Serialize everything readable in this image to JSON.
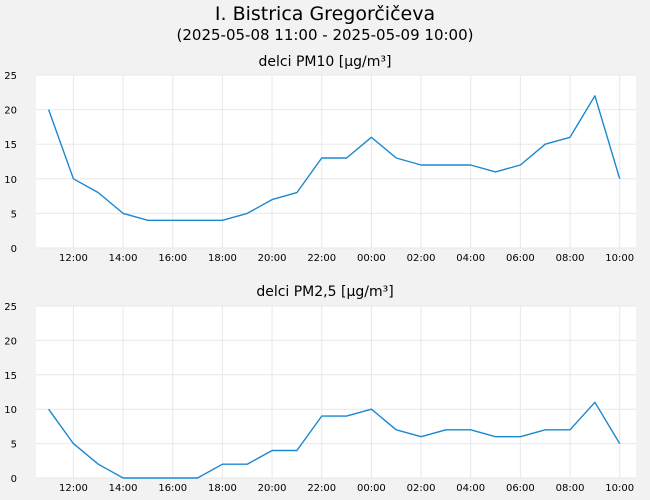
{
  "header": {
    "title": "I. Bistrica Gregorčičeva",
    "subtitle": "(2025-05-08 11:00 - 2025-05-09 10:00)"
  },
  "colors": {
    "line": "#1a88d0",
    "plot_bg": "#ffffff",
    "grid": "#e8e8e8",
    "page_bg": "#f2f2f2"
  },
  "chart_data": [
    {
      "type": "line",
      "title": "delci PM10 [µg/m³]",
      "x": [
        "11:00",
        "12:00",
        "13:00",
        "14:00",
        "15:00",
        "16:00",
        "17:00",
        "18:00",
        "19:00",
        "20:00",
        "21:00",
        "22:00",
        "23:00",
        "00:00",
        "01:00",
        "02:00",
        "03:00",
        "04:00",
        "05:00",
        "06:00",
        "07:00",
        "08:00",
        "09:00",
        "10:00"
      ],
      "xtick_labels": [
        "12:00",
        "14:00",
        "16:00",
        "18:00",
        "20:00",
        "22:00",
        "00:00",
        "02:00",
        "04:00",
        "06:00",
        "08:00",
        "10:00"
      ],
      "values": [
        20,
        10,
        8,
        5,
        4,
        4,
        4,
        4,
        5,
        7,
        8,
        13,
        13,
        16,
        13,
        12,
        12,
        12,
        11,
        12,
        15,
        16,
        22,
        10
      ],
      "ylim": [
        0,
        25
      ],
      "yticks": [
        0,
        5,
        10,
        15,
        20,
        25
      ],
      "grid": true
    },
    {
      "type": "line",
      "title": "delci PM2,5 [µg/m³]",
      "x": [
        "11:00",
        "12:00",
        "13:00",
        "14:00",
        "15:00",
        "16:00",
        "17:00",
        "18:00",
        "19:00",
        "20:00",
        "21:00",
        "22:00",
        "23:00",
        "00:00",
        "01:00",
        "02:00",
        "03:00",
        "04:00",
        "05:00",
        "06:00",
        "07:00",
        "08:00",
        "09:00",
        "10:00"
      ],
      "xtick_labels": [
        "12:00",
        "14:00",
        "16:00",
        "18:00",
        "20:00",
        "22:00",
        "00:00",
        "02:00",
        "04:00",
        "06:00",
        "08:00",
        "10:00"
      ],
      "values": [
        10,
        5,
        2,
        0,
        0,
        0,
        0,
        2,
        2,
        4,
        4,
        9,
        9,
        10,
        7,
        6,
        7,
        7,
        6,
        6,
        7,
        7,
        11,
        5
      ],
      "ylim": [
        0,
        25
      ],
      "yticks": [
        0,
        5,
        10,
        15,
        20,
        25
      ],
      "grid": true
    }
  ]
}
